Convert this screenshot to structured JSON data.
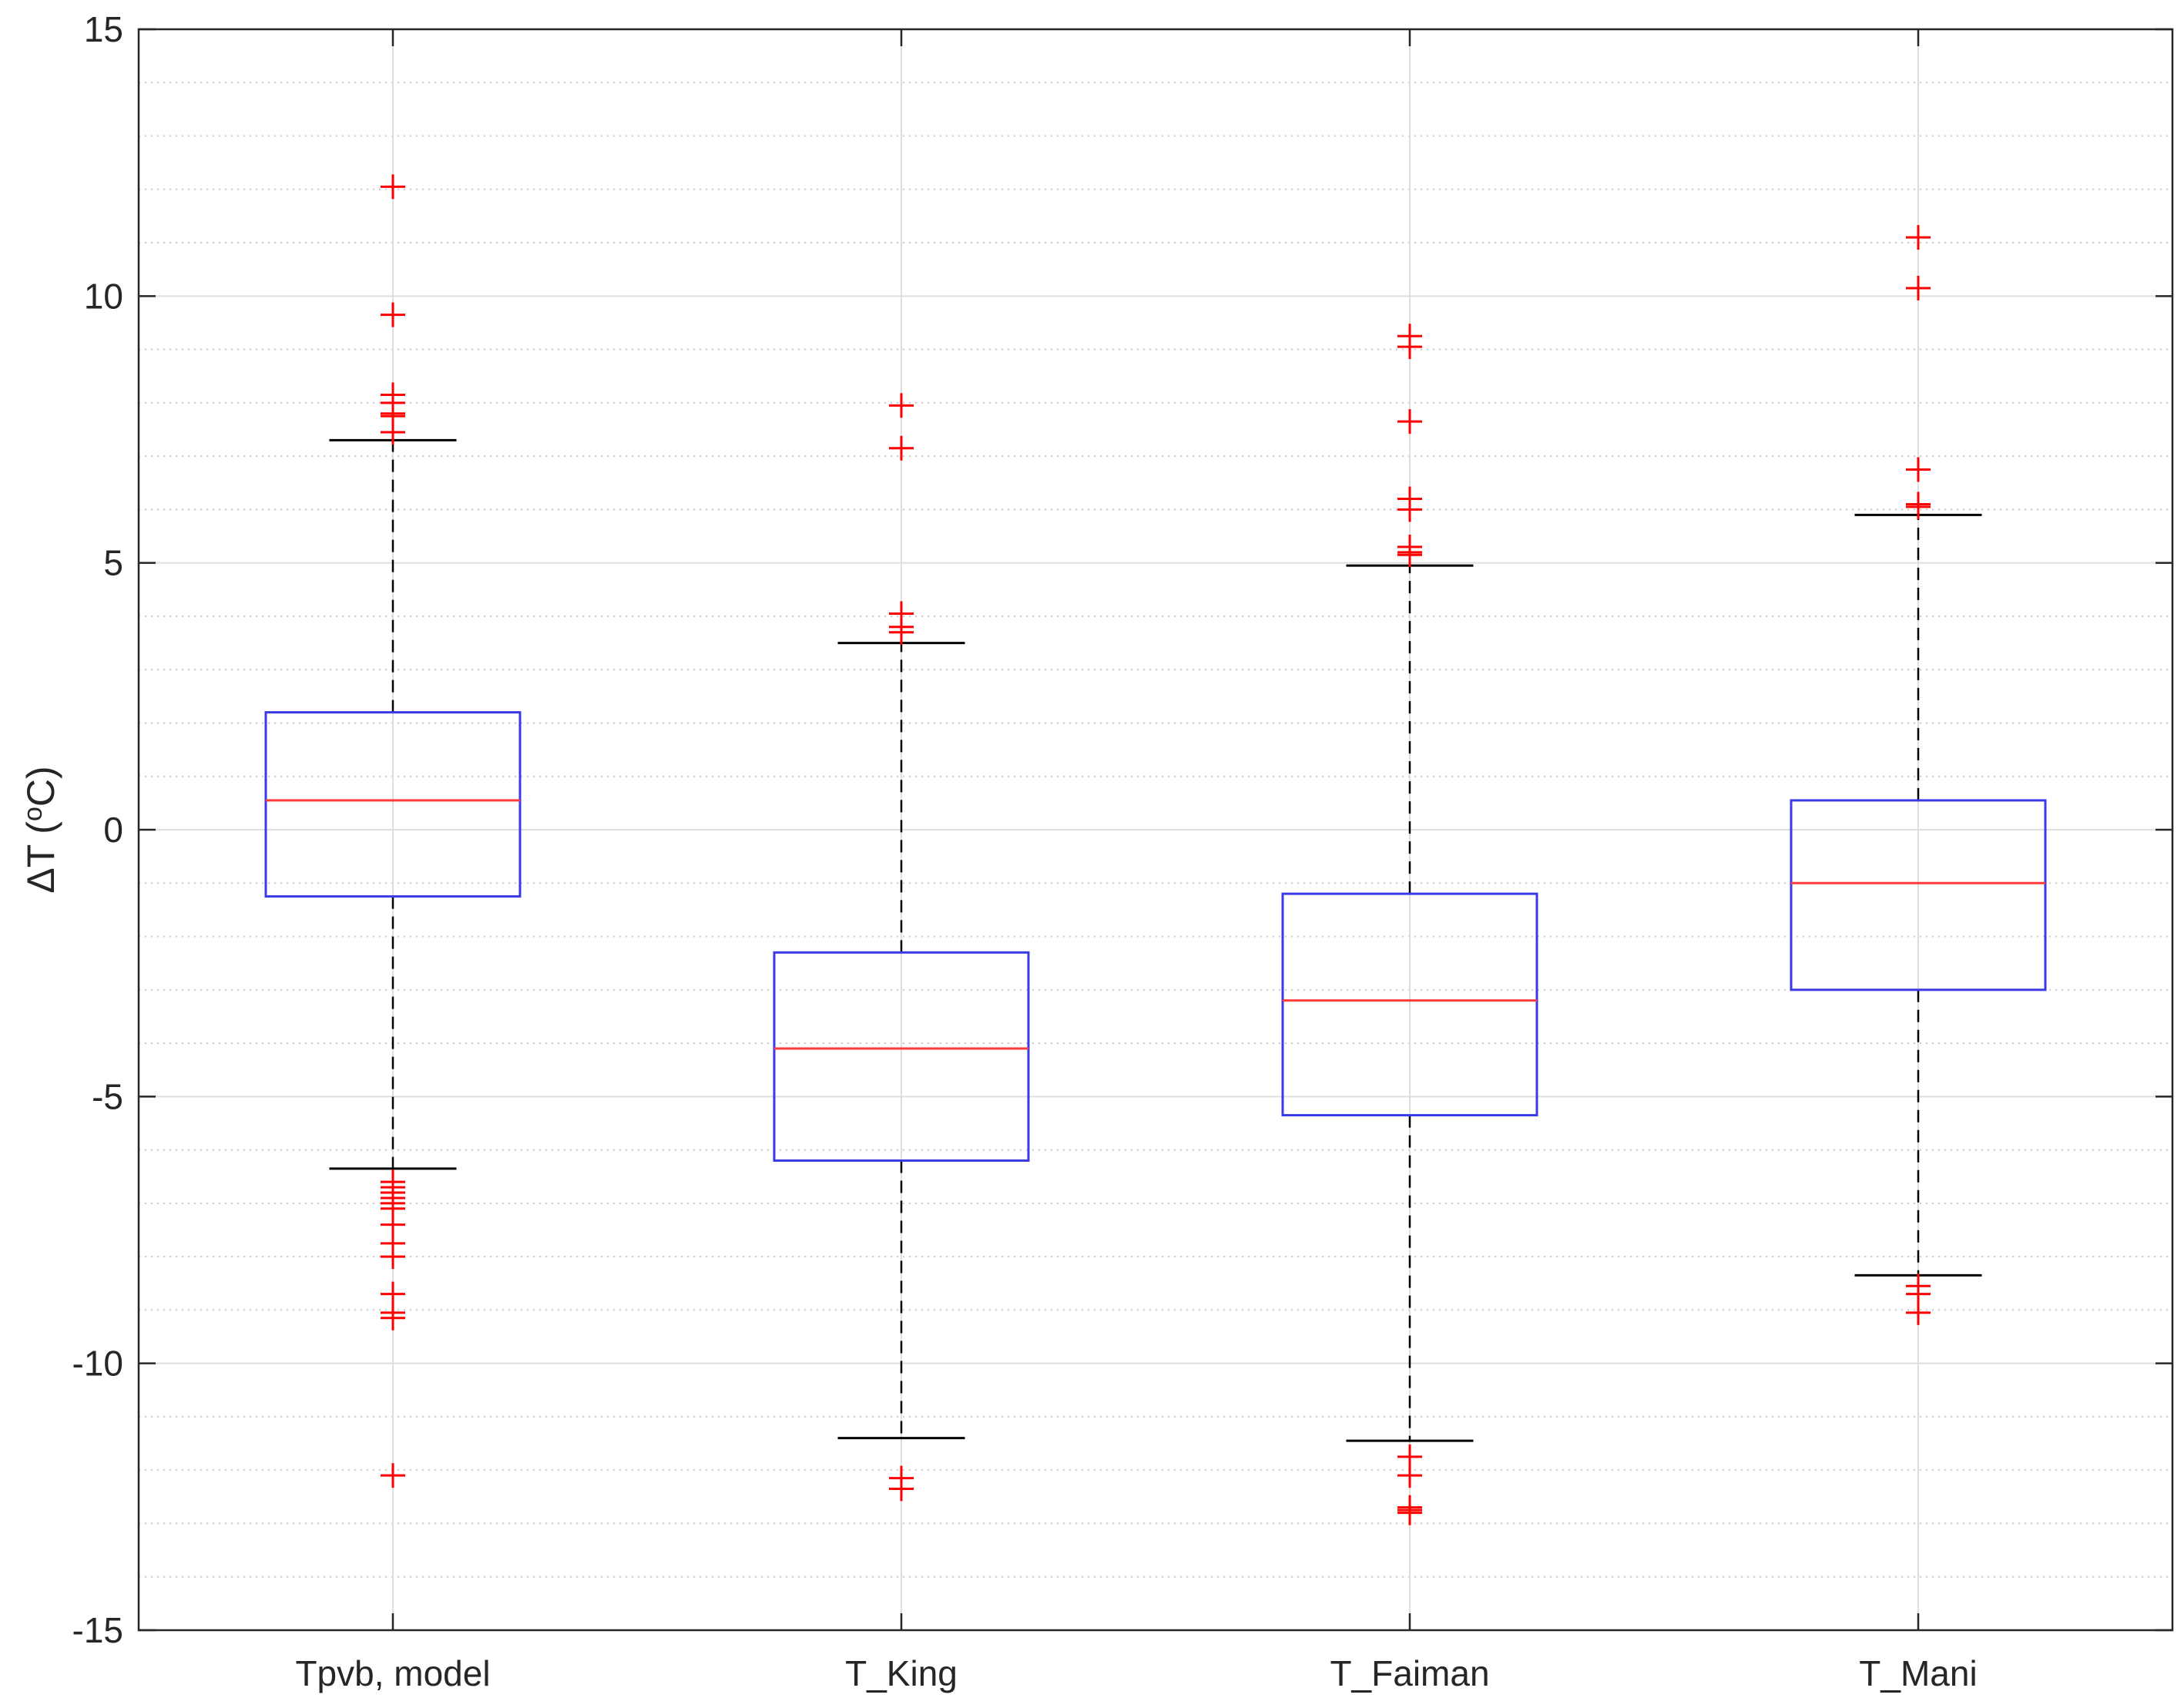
{
  "chart_data": {
    "type": "boxplot",
    "title": "",
    "xlabel": "",
    "ylabel": "ΔT (",
    "ylabel_sup": "o",
    "ylabel_tail": "C)",
    "ylim": [
      -15,
      15
    ],
    "yticks": [
      -15,
      -10,
      -5,
      0,
      5,
      10,
      15
    ],
    "ytick_labels": [
      "-15",
      "-10",
      "-5",
      "0",
      "5",
      "10",
      "15"
    ],
    "minor_grid_step": 1,
    "grid": true,
    "categories": [
      "Tpvb, model",
      "T_King",
      "T_Faiman",
      "T_Mani"
    ],
    "boxes": [
      {
        "name": "Tpvb, model",
        "whisker_low": -6.35,
        "q1": -1.25,
        "median": 0.55,
        "q3": 2.2,
        "whisker_high": 7.3,
        "outliers": [
          12.05,
          9.65,
          8.15,
          8.0,
          7.8,
          7.75,
          7.45,
          -6.6,
          -6.7,
          -6.8,
          -6.9,
          -7.0,
          -7.1,
          -7.4,
          -7.75,
          -8.0,
          -8.7,
          -9.05,
          -9.15,
          -12.1
        ]
      },
      {
        "name": "T_King",
        "whisker_low": -11.4,
        "q1": -6.2,
        "median": -4.1,
        "q3": -2.3,
        "whisker_high": 3.5,
        "outliers": [
          7.95,
          7.15,
          4.05,
          3.8,
          3.7,
          -12.15,
          -12.35
        ]
      },
      {
        "name": "T_Faiman",
        "whisker_low": -11.45,
        "q1": -5.35,
        "median": -3.2,
        "q3": -1.2,
        "whisker_high": 4.95,
        "outliers": [
          9.25,
          9.05,
          7.65,
          6.2,
          6.0,
          5.3,
          5.2,
          5.15,
          -11.75,
          -12.1,
          -12.7,
          -12.75,
          -12.8
        ]
      },
      {
        "name": "T_Mani",
        "whisker_low": -8.35,
        "q1": -3.0,
        "median": -1.0,
        "q3": 0.55,
        "whisker_high": 5.9,
        "outliers": [
          11.1,
          10.15,
          6.75,
          6.1,
          6.05,
          -8.55,
          -8.7,
          -9.05
        ]
      }
    ],
    "colors": {
      "box": "#3a3ae6",
      "median": "#ff3b3b",
      "whisker": "#000000",
      "outlier": "#ff0000",
      "grid_major": "#dedede",
      "grid_minor": "#c9c9c9",
      "axis": "#262626"
    }
  }
}
